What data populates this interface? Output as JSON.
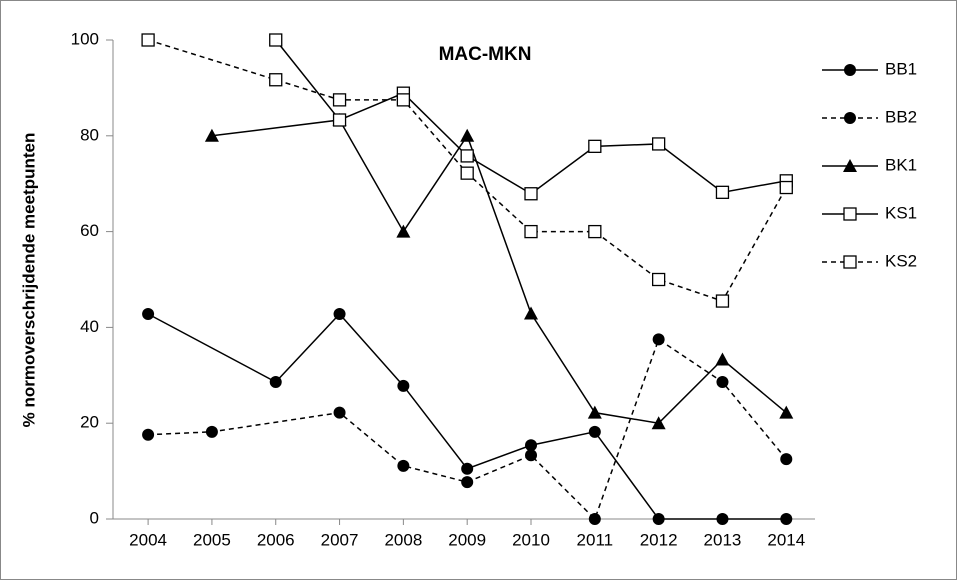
{
  "chart_data": {
    "type": "line",
    "title": "MAC-MKN",
    "y_label": "% normoverschrijdende meetpunten",
    "xlim": [
      2003.45,
      2014.45
    ],
    "xticks": [
      2004,
      2005,
      2006,
      2007,
      2008,
      2009,
      2010,
      2011,
      2012,
      2013,
      2014
    ],
    "ylim": [
      0,
      100
    ],
    "yticks": [
      0,
      20,
      40,
      60,
      80,
      100
    ],
    "grid": false,
    "legend": "right",
    "series": [
      {
        "name": "BB1",
        "color": "#000000",
        "marker": "circle",
        "dashed": false,
        "x": [
          2004,
          2006,
          2007,
          2008,
          2009,
          2010,
          2011,
          2012,
          2013,
          2014
        ],
        "values": [
          42.8,
          28.6,
          42.8,
          27.8,
          10.5,
          15.4,
          18.2,
          0,
          0,
          0
        ]
      },
      {
        "name": "BB2",
        "color": "#000000",
        "marker": "circle",
        "dashed": true,
        "x": [
          2004,
          2005,
          2007,
          2008,
          2009,
          2010,
          2011,
          2012,
          2013,
          2014
        ],
        "values": [
          17.6,
          18.2,
          22.2,
          11.1,
          7.7,
          13.3,
          0,
          37.5,
          28.6,
          12.5
        ]
      },
      {
        "name": "BK1",
        "color": "#000000",
        "marker": "triangle",
        "dashed": false,
        "x": [
          2005,
          2007,
          2008,
          2009,
          2010,
          2011,
          2012,
          2013,
          2014
        ],
        "values": [
          80,
          83.3,
          60,
          80,
          42.9,
          22.2,
          20,
          33.3,
          22.2
        ]
      },
      {
        "name": "KS1",
        "color": "#000000",
        "marker": "square",
        "dashed": false,
        "x": [
          2006,
          2007,
          2008,
          2009,
          2010,
          2011,
          2012,
          2013,
          2014
        ],
        "values": [
          100,
          83.3,
          88.9,
          75.8,
          67.9,
          77.8,
          78.3,
          68.2,
          70.6
        ]
      },
      {
        "name": "KS2",
        "color": "#000000",
        "marker": "square",
        "dashed": true,
        "x": [
          2004,
          2006,
          2007,
          2008,
          2009,
          2010,
          2011,
          2012,
          2013,
          2014
        ],
        "values": [
          100,
          91.7,
          87.5,
          87.5,
          72.2,
          60,
          60,
          50,
          45.5,
          69.2
        ]
      }
    ]
  }
}
